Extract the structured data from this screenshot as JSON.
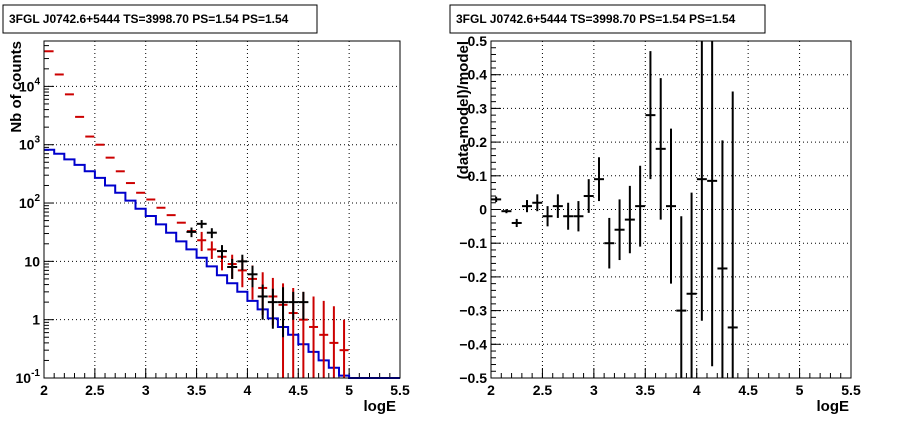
{
  "colors": {
    "data": "#000000",
    "model": "#0000cc",
    "sim": "#cc0000",
    "grid": "#000000"
  },
  "chart_data": [
    {
      "type": "line",
      "title": "3FGL J0742.6+5444 TS=3998.70 PS=1.54 PS=1.54",
      "xlabel": "logE",
      "ylabel": "Nb of counts",
      "xlim": [
        2,
        5.5
      ],
      "ylim": [
        0.1,
        60000
      ],
      "yscale": "log",
      "grid": true,
      "x_ticks": [
        "2",
        "2.5",
        "3",
        "3.5",
        "4",
        "4.5",
        "5",
        "5.5"
      ],
      "y_ticks": [
        "10^{-1}",
        "1",
        "10",
        "10^{2}",
        "10^{3}",
        "10^{4}"
      ],
      "y_tick_values": [
        0.1,
        1,
        10,
        100,
        1000,
        10000
      ],
      "bin_edges": [
        2.0,
        2.1,
        2.2,
        2.3,
        2.4,
        2.5,
        2.6,
        2.7,
        2.8,
        2.9,
        3.0,
        3.1,
        3.2,
        3.3,
        3.4,
        3.5,
        3.6,
        3.7,
        3.8,
        3.9,
        4.0,
        4.1,
        4.2,
        4.3,
        4.4,
        4.5,
        4.6,
        4.7,
        4.8,
        4.9,
        5.0,
        5.1,
        5.2,
        5.3,
        5.4,
        5.5
      ],
      "series": [
        {
          "role": "model",
          "kind": "step",
          "values": [
            820,
            700,
            560,
            450,
            350,
            270,
            200,
            150,
            110,
            80,
            60,
            43,
            31,
            22,
            16,
            11.5,
            8.2,
            5.8,
            4.2,
            3.0,
            2.1,
            1.5,
            1.05,
            0.75,
            0.55,
            0.38,
            0.28,
            0.2,
            0.15,
            0.11,
            0.1,
            0.1,
            0.1,
            0.1,
            0.1
          ]
        },
        {
          "role": "sim",
          "kind": "bars",
          "x": [
            2.05,
            2.15,
            2.25,
            2.35,
            2.45,
            2.55,
            2.65,
            2.75,
            2.85,
            2.95,
            3.05,
            3.15,
            3.25,
            3.35,
            3.45,
            3.55,
            3.65,
            3.75,
            3.85,
            3.95,
            4.05,
            4.15,
            4.25,
            4.35,
            4.45,
            4.55,
            4.65,
            4.75,
            4.85,
            4.95
          ],
          "values": [
            40000,
            16000,
            7300,
            3000,
            1380,
            1000,
            600,
            350,
            220,
            150,
            115,
            83,
            62,
            46,
            33,
            23,
            16,
            12,
            9,
            7,
            5,
            3.5,
            2.5,
            1.8,
            1.3,
            1.0,
            0.75,
            0.55,
            0.4,
            0.3
          ],
          "err_low": [
            null,
            null,
            null,
            null,
            null,
            null,
            null,
            null,
            null,
            null,
            null,
            null,
            null,
            null,
            null,
            15,
            11,
            7,
            5,
            3.6,
            2.2,
            1.2,
            0.8,
            0.1,
            0.1,
            0.1,
            0.1,
            0.1,
            0.1,
            0.1
          ],
          "err_high": [
            null,
            null,
            null,
            null,
            null,
            null,
            null,
            null,
            null,
            null,
            null,
            null,
            null,
            null,
            null,
            32,
            22,
            17,
            13,
            11,
            8.5,
            6.5,
            5.2,
            4.2,
            3.5,
            3.0,
            2.5,
            2.1,
            1.7,
            1.0
          ]
        },
        {
          "role": "data",
          "kind": "points",
          "x": [
            2.05,
            2.15,
            2.25,
            2.35,
            2.45,
            2.55,
            2.65,
            2.75,
            2.85,
            2.95,
            3.05,
            3.15,
            3.25,
            3.35,
            3.45,
            3.55,
            3.65,
            3.75,
            3.85,
            3.95,
            4.05,
            4.15,
            4.25,
            4.35,
            4.45,
            4.55
          ],
          "values": [
            40000,
            16000,
            7300,
            3000,
            1380,
            1000,
            600,
            350,
            220,
            150,
            115,
            82,
            60,
            44,
            32,
            44,
            31,
            15,
            8,
            10,
            6,
            2.5,
            2,
            2,
            2,
            2
          ],
          "err_low": [
            39800,
            15870,
            7210,
            2940,
            1340,
            970,
            576,
            331,
            205,
            138,
            104,
            73,
            52,
            37,
            26,
            37,
            25,
            11,
            5,
            7,
            3.6,
            1.0,
            0.7,
            0.5,
            1.0,
            1.0
          ],
          "err_high": [
            40200,
            16130,
            7390,
            3060,
            1420,
            1030,
            624,
            369,
            235,
            162,
            126,
            91,
            68,
            51,
            38,
            51,
            37,
            19,
            11,
            13,
            8.4,
            4.0,
            3.4,
            3.6,
            3.0,
            3.0
          ]
        }
      ]
    },
    {
      "type": "scatter",
      "title": "3FGL J0742.6+5444 TS=3998.70 PS=1.54 PS=1.54",
      "xlabel": "logE",
      "ylabel": "(data-model)/model",
      "xlim": [
        2,
        5.5
      ],
      "ylim": [
        -0.5,
        0.5
      ],
      "grid": true,
      "x_ticks": [
        "2",
        "2.5",
        "3",
        "3.5",
        "4",
        "4.5",
        "5",
        "5.5"
      ],
      "y_ticks": [
        "-0.5",
        "-0.4",
        "-0.3",
        "-0.2",
        "-0.1",
        "0",
        "0.1",
        "0.2",
        "0.3",
        "0.4",
        "0.5"
      ],
      "points": {
        "x": [
          2.05,
          2.15,
          2.25,
          2.35,
          2.45,
          2.55,
          2.65,
          2.75,
          2.85,
          2.95,
          3.05,
          3.15,
          3.25,
          3.35,
          3.45,
          3.55,
          3.65,
          3.75,
          3.85,
          3.95,
          4.05,
          4.15,
          4.25,
          4.35
        ],
        "y": [
          0.03,
          -0.005,
          -0.04,
          0.01,
          0.02,
          -0.02,
          0.01,
          -0.02,
          -0.02,
          0.04,
          0.09,
          -0.1,
          -0.06,
          -0.03,
          0.01,
          0.28,
          0.18,
          0.01,
          -0.3,
          -0.25,
          0.09,
          0.085,
          -0.175,
          -0.35
        ],
        "err": [
          0.008,
          0.006,
          0.012,
          0.018,
          0.025,
          0.03,
          0.035,
          0.04,
          0.045,
          0.05,
          0.065,
          0.075,
          0.09,
          0.1,
          0.12,
          0.19,
          0.21,
          0.23,
          0.28,
          0.3,
          0.42,
          0.55,
          0.38,
          0.7
        ]
      }
    }
  ]
}
